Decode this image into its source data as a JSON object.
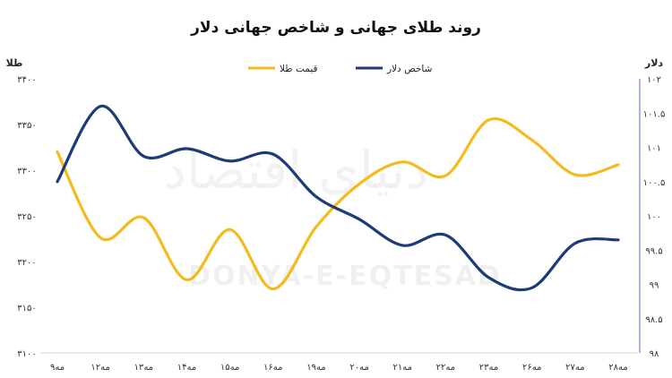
{
  "chart_data": {
    "type": "line",
    "title": "روند طلای جهانی و شاخص جهانی دلار",
    "categories": [
      "۹مه",
      "۱۲مه",
      "۱۳مه",
      "۱۴مه",
      "۱۵مه",
      "۱۶مه",
      "۱۹مه",
      "۲۰مه",
      "۲۱مه",
      "۲۲مه",
      "۲۳مه",
      "۲۶مه",
      "۲۷مه",
      "۲۸مه"
    ],
    "left_axis": {
      "label": "طلا",
      "ylim": [
        3100,
        3400
      ],
      "ticks": [
        3100,
        3150,
        3200,
        3250,
        3300,
        3350,
        3400
      ],
      "tick_labels": [
        "۳۱۰۰",
        "۳۱۵۰",
        "۳۲۰۰",
        "۳۲۵۰",
        "۳۳۰۰",
        "۳۳۵۰",
        "۳۴۰۰"
      ]
    },
    "right_axis": {
      "label": "دلار",
      "ylim": [
        98,
        102
      ],
      "ticks": [
        98,
        98.5,
        99,
        99.5,
        100,
        100.5,
        101,
        101.5,
        102
      ],
      "tick_labels": [
        "۹۸",
        "۹۸.۵",
        "۹۹",
        "۹۹.۵",
        "۱۰۰",
        "۱۰۰.۵",
        "۱۰۱",
        "۱۰۱.۵",
        "۱۰۲"
      ]
    },
    "series": [
      {
        "name": "قیمت طلا",
        "axis": "left",
        "color": "#F3BB1C",
        "values": [
          3320,
          3226,
          3248,
          3180,
          3235,
          3170,
          3238,
          3285,
          3309,
          3294,
          3355,
          3333,
          3295,
          3306
        ]
      },
      {
        "name": "شاخص دلار",
        "axis": "right",
        "color": "#1F3A7A",
        "values": [
          100.5,
          101.6,
          100.87,
          100.98,
          100.8,
          100.9,
          100.28,
          99.95,
          99.57,
          99.72,
          99.1,
          98.95,
          99.6,
          99.65
        ]
      }
    ],
    "grid": false,
    "legend": "top-center"
  },
  "watermark": {
    "latin": "DONYA-E-EQTESAD",
    "persian": "دنیای اقتصاد"
  }
}
